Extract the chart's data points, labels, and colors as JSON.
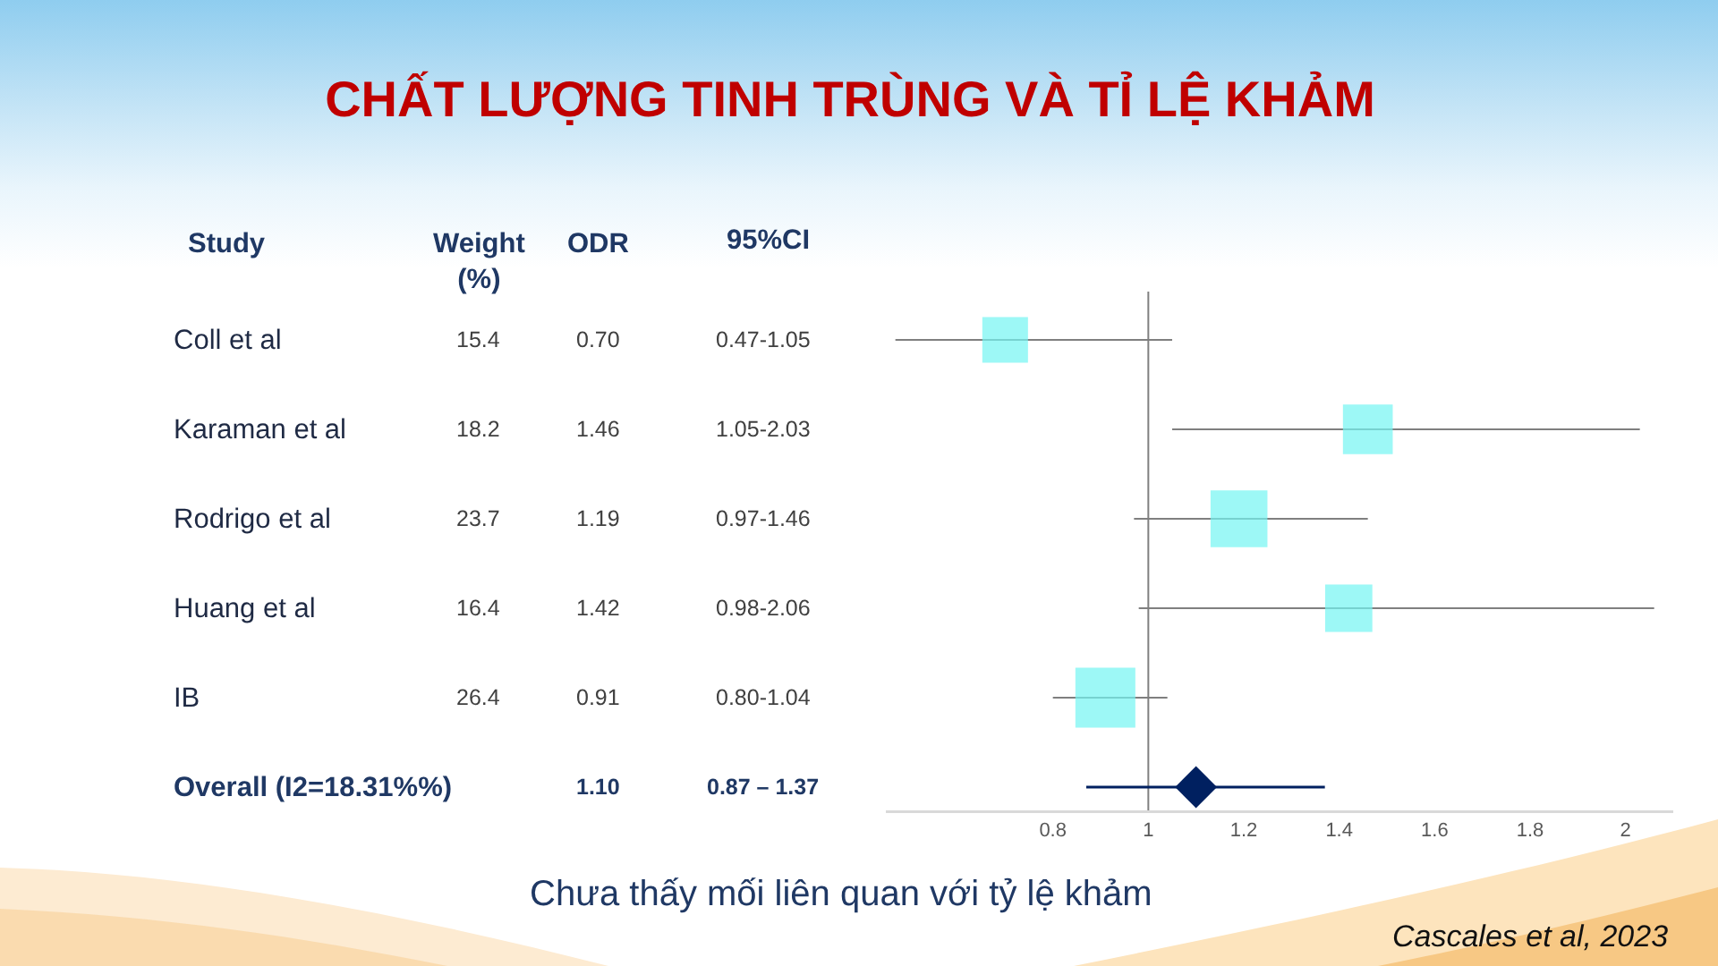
{
  "chart_data": {
    "type": "bubble",
    "title": "CHẤT LƯỢNG TINH TRÙNG VÀ TỈ LỆ KHẢM",
    "categories": [
      null,
      null,
      null,
      null,
      null,
      null
    ],
    "orientation": "horizontal",
    "series": [
      {
        "marker": "square",
        "color": "#74f5f2",
        "values": [
          0.7,
          1.46,
          1.19,
          1.42,
          0.91,
          null
        ],
        "errors": [
          [
            0.47,
            1.05
          ],
          [
            1.05,
            2.03
          ],
          [
            0.97,
            1.46
          ],
          [
            0.98,
            2.06
          ],
          [
            0.8,
            1.04
          ],
          null
        ],
        "sizes": [
          0.58,
          0.69,
          0.9,
          0.62,
          1,
          null
        ],
        "value_labels": [
          "0.70",
          "1.46",
          "1.19",
          "1.42",
          "0.91",
          null
        ]
      },
      {
        "type": "scatter",
        "marker": "diamond",
        "color": "#002060",
        "values": [
          null,
          null,
          null,
          null,
          null,
          1.1
        ],
        "errors": [
          null,
          null,
          null,
          null,
          null,
          [
            0.87,
            1.37
          ]
        ]
      }
    ],
    "xlim": [
      0.45,
      2.1
    ],
    "xticks": [
      0.8,
      1,
      1.2,
      1.4,
      1.6,
      1.8,
      2
    ],
    "ref_lines": [
      {
        "axis": "x",
        "value": 1,
        "color": "#808080"
      }
    ],
    "annotations": [
      "Study",
      "Weight\n(%)",
      "ODR",
      "95%CI",
      "Coll et al",
      "Karaman et al",
      "Rodrigo et al",
      "Huang et al",
      "IB",
      "Overall (I2=18.31%%)",
      "15.4",
      "18.2",
      "23.7",
      "16.4",
      "26.4",
      "1.10",
      "0.47-1.05",
      "1.05-2.03",
      "0.97-1.46",
      "0.98-2.06",
      "0.80-1.04",
      "0.87 – 1.37",
      "Chưa thấy mối liên quan với tỷ lệ khảm",
      "Cascales et al, 2023"
    ]
  }
}
